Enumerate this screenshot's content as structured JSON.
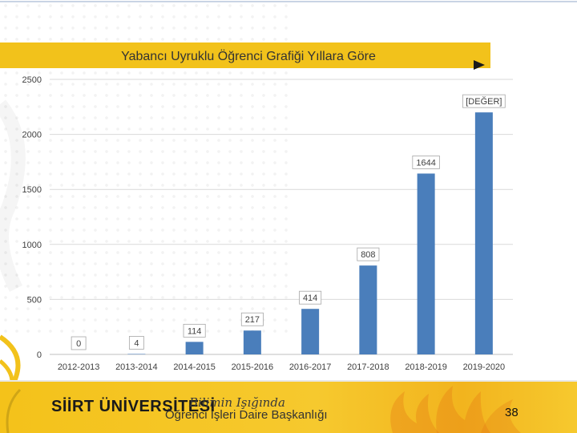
{
  "slide": {
    "university": "SİİRT ÜNİVERSİTESİ",
    "motto": "Bilimin Işığında",
    "department": "Öğrenci İşleri Daire Başkanlığı",
    "page_number": "38",
    "colors": {
      "accent": "#f2c21b",
      "bar": "#4a7ebb"
    },
    "icons": [
      "play-icon",
      "flame-logo-icon"
    ]
  },
  "chart_data": {
    "type": "bar",
    "title": "Yabancı Uyruklu Öğrenci Grafiği Yıllara Göre",
    "categories": [
      "2012-2013",
      "2013-2014",
      "2014-2015",
      "2015-2016",
      "2016-2017",
      "2017-2018",
      "2018-2019",
      "2019-2020"
    ],
    "values": [
      0,
      4,
      114,
      217,
      414,
      808,
      1644,
      2200
    ],
    "data_labels": [
      "0",
      "4",
      "114",
      "217",
      "414",
      "808",
      "1644",
      "[DEĞER]"
    ],
    "ylim": [
      0,
      2500
    ],
    "yticks": [
      0,
      500,
      1000,
      1500,
      2000,
      2500
    ],
    "grid": true,
    "xlabel": "",
    "ylabel": ""
  }
}
